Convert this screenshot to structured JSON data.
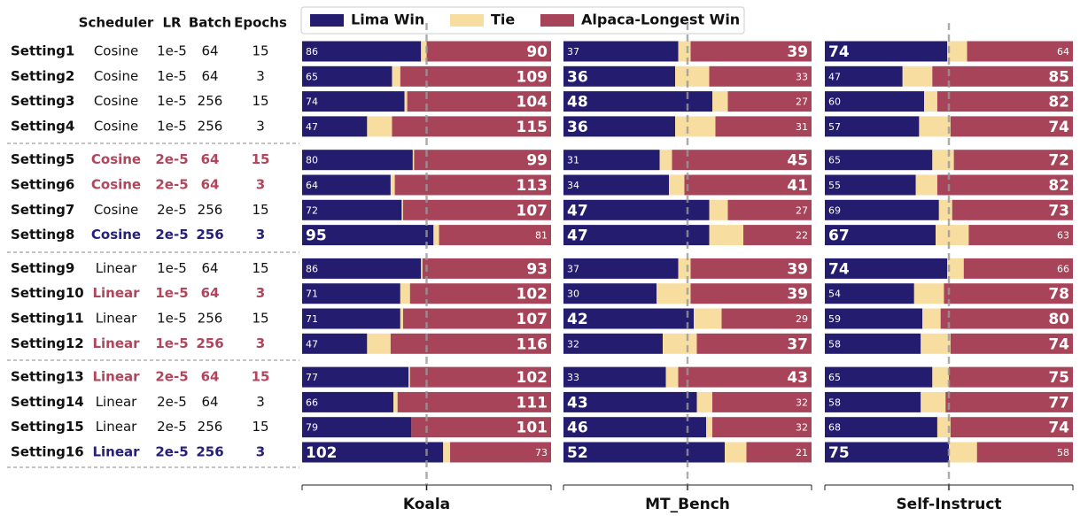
{
  "table": {
    "columns": [
      "Scheduler",
      "LR",
      "Batch",
      "Epochs"
    ],
    "rows": [
      [
        "Setting1",
        "Cosine",
        "1e-5",
        64,
        15
      ],
      [
        "Setting2",
        "Cosine",
        "1e-5",
        64,
        3
      ],
      [
        "Setting3",
        "Cosine",
        "1e-5",
        256,
        15
      ],
      [
        "Setting4",
        "Cosine",
        "1e-5",
        256,
        3
      ],
      [
        "Setting5",
        "Cosine",
        "2e-5",
        64,
        15
      ],
      [
        "Setting6",
        "Cosine",
        "2e-5",
        64,
        3
      ],
      [
        "Setting7",
        "Cosine",
        "2e-5",
        256,
        15
      ],
      [
        "Setting8",
        "Cosine",
        "2e-5",
        256,
        3
      ],
      [
        "Setting9",
        "Linear",
        "1e-5",
        64,
        15
      ],
      [
        "Setting10",
        "Linear",
        "1e-5",
        64,
        3
      ],
      [
        "Setting11",
        "Linear",
        "1e-5",
        256,
        15
      ],
      [
        "Setting12",
        "Linear",
        "1e-5",
        256,
        3
      ],
      [
        "Setting13",
        "Linear",
        "2e-5",
        64,
        15
      ],
      [
        "Setting14",
        "Linear",
        "2e-5",
        64,
        3
      ],
      [
        "Setting15",
        "Linear",
        "2e-5",
        256,
        15
      ],
      [
        "Setting16",
        "Linear",
        "2e-5",
        256,
        3
      ]
    ],
    "highlight": [
      "#111111",
      "#111111",
      "#111111",
      "#111111",
      "#b0465c",
      "#b0465c",
      "#111111",
      "#27207a",
      "#111111",
      "#b0465c",
      "#111111",
      "#b0465c",
      "#b0465c",
      "#111111",
      "#111111",
      "#27207a"
    ]
  },
  "chart_data": [
    {
      "type": "stacked-bar",
      "title": "Koala",
      "xlim": [
        0,
        180
      ],
      "series": [
        {
          "name": "Lima Win",
          "color": "#241c6e",
          "values": [
            86,
            65,
            74,
            47,
            80,
            64,
            72,
            95,
            86,
            71,
            71,
            47,
            77,
            66,
            79,
            102
          ]
        },
        {
          "name": "Tie",
          "color": "#f7dea0",
          "values": [
            4,
            6,
            2,
            18,
            1,
            3,
            1,
            4,
            1,
            7,
            2,
            17,
            1,
            3,
            0,
            5
          ]
        },
        {
          "name": "Alpaca-Longest Win",
          "color": "#a8445a",
          "values": [
            90,
            109,
            104,
            115,
            99,
            113,
            107,
            81,
            93,
            102,
            107,
            116,
            102,
            111,
            101,
            73
          ]
        }
      ]
    },
    {
      "type": "stacked-bar",
      "title": "MT_Bench",
      "xlim": [
        0,
        80
      ],
      "series": [
        {
          "name": "Lima Win",
          "color": "#241c6e",
          "values": [
            37,
            36,
            48,
            36,
            31,
            34,
            47,
            47,
            37,
            30,
            42,
            32,
            33,
            43,
            46,
            52
          ]
        },
        {
          "name": "Tie",
          "color": "#f7dea0",
          "values": [
            4,
            11,
            5,
            13,
            4,
            5,
            6,
            11,
            4,
            11,
            9,
            11,
            4,
            5,
            2,
            7
          ]
        },
        {
          "name": "Alpaca-Longest Win",
          "color": "#a8445a",
          "values": [
            39,
            33,
            27,
            31,
            45,
            41,
            27,
            22,
            39,
            39,
            29,
            37,
            43,
            32,
            32,
            21
          ]
        }
      ]
    },
    {
      "type": "stacked-bar",
      "title": "Self-Instruct",
      "xlim": [
        0,
        150
      ],
      "series": [
        {
          "name": "Lima Win",
          "color": "#241c6e",
          "values": [
            74,
            47,
            60,
            57,
            65,
            55,
            69,
            67,
            74,
            54,
            59,
            58,
            65,
            58,
            68,
            75
          ]
        },
        {
          "name": "Tie",
          "color": "#f7dea0",
          "values": [
            12,
            18,
            8,
            19,
            13,
            13,
            8,
            20,
            10,
            18,
            11,
            18,
            10,
            15,
            8,
            17
          ]
        },
        {
          "name": "Alpaca-Longest Win",
          "color": "#a8445a",
          "values": [
            64,
            85,
            82,
            74,
            72,
            82,
            73,
            63,
            66,
            78,
            80,
            74,
            75,
            77,
            74,
            58
          ]
        }
      ]
    }
  ]
}
